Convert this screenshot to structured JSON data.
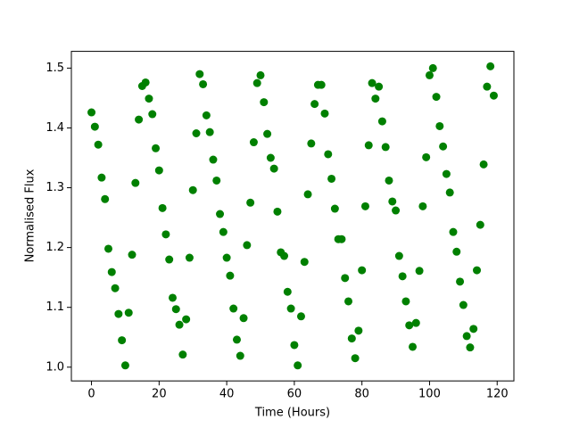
{
  "chart_data": {
    "type": "scatter",
    "xlabel": "Time (Hours)",
    "ylabel": "Normalised Flux",
    "color": "#008000",
    "x": [
      0,
      1,
      2,
      3,
      4,
      5,
      6,
      7,
      8,
      9,
      10,
      11,
      12,
      13,
      14,
      15,
      16,
      17,
      18,
      19,
      20,
      21,
      22,
      23,
      24,
      25,
      26,
      27,
      28,
      29,
      30,
      31,
      32,
      33,
      34,
      35,
      36,
      37,
      38,
      39,
      40,
      41,
      42,
      43,
      44,
      45,
      46,
      47,
      48,
      49,
      50,
      51,
      52,
      53,
      54,
      55,
      56,
      57,
      58,
      59,
      60,
      61,
      62,
      63,
      64,
      65,
      66,
      67,
      68,
      69,
      70,
      71,
      72,
      73,
      74,
      75,
      76,
      77,
      78,
      79,
      80,
      81,
      82,
      83,
      84,
      85,
      86,
      87,
      88,
      89,
      90,
      91,
      92,
      93,
      94,
      95,
      96,
      97,
      98,
      99,
      100,
      101,
      102,
      103,
      104,
      105,
      106,
      107,
      108,
      109,
      110,
      111,
      112,
      113,
      114,
      115,
      116,
      117,
      118,
      119
    ],
    "y": [
      1.426,
      1.402,
      1.372,
      1.317,
      1.281,
      1.198,
      1.159,
      1.132,
      1.089,
      1.045,
      1.003,
      1.091,
      1.188,
      1.308,
      1.414,
      1.47,
      1.476,
      1.449,
      1.423,
      1.366,
      1.329,
      1.266,
      1.222,
      1.18,
      1.116,
      1.097,
      1.071,
      1.021,
      1.08,
      1.183,
      1.296,
      1.391,
      1.49,
      1.473,
      1.421,
      1.393,
      1.347,
      1.312,
      1.256,
      1.226,
      1.183,
      1.153,
      1.098,
      1.046,
      1.019,
      1.082,
      1.204,
      1.275,
      1.376,
      1.475,
      1.488,
      1.443,
      1.39,
      1.35,
      1.332,
      1.26,
      1.192,
      1.186,
      1.126,
      1.098,
      1.037,
      1.003,
      1.085,
      1.176,
      1.289,
      1.374,
      1.44,
      1.472,
      1.472,
      1.424,
      1.356,
      1.315,
      1.265,
      1.214,
      1.214,
      1.149,
      1.11,
      1.048,
      1.015,
      1.061,
      1.162,
      1.269,
      1.371,
      1.475,
      1.449,
      1.469,
      1.411,
      1.368,
      1.312,
      1.277,
      1.262,
      1.186,
      1.152,
      1.11,
      1.07,
      1.034,
      1.074,
      1.161,
      1.269,
      1.351,
      1.488,
      1.5,
      1.452,
      1.403,
      1.369,
      1.323,
      1.292,
      1.226,
      1.193,
      1.143,
      1.104,
      1.052,
      1.033,
      1.064,
      1.162,
      1.238,
      1.339,
      1.469,
      1.503,
      1.454
    ],
    "xlim": [
      -5.95,
      124.95
    ],
    "ylim": [
      0.977,
      1.528
    ],
    "xticks": [
      0,
      20,
      40,
      60,
      80,
      100,
      120
    ],
    "yticks": [
      {
        "value": 1,
        "label": "1.0"
      },
      1.1,
      1.2,
      1.3,
      1.4,
      1.5
    ]
  }
}
